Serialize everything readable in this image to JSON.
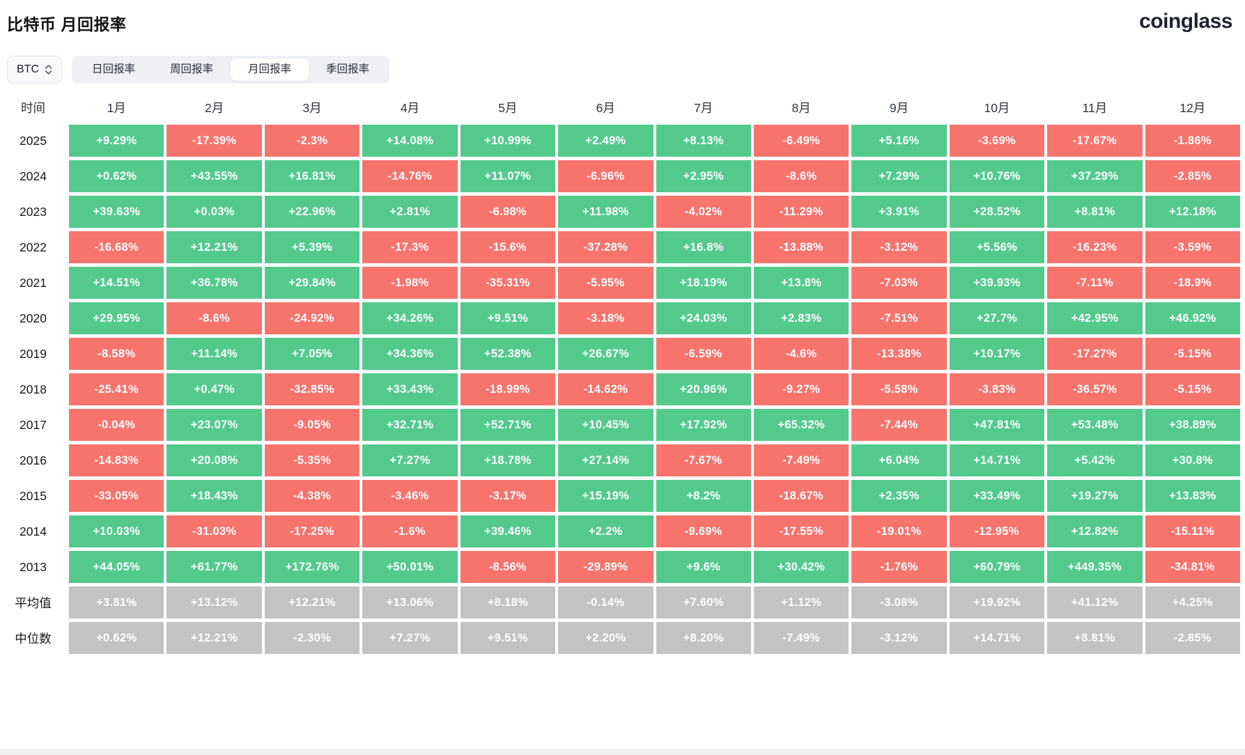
{
  "page": {
    "title": "比特币 月回报率",
    "brand": "coinglass"
  },
  "controls": {
    "coin_selector": {
      "value": "BTC",
      "icon": "up-down-chevrons"
    },
    "tabs": [
      {
        "label": "日回报率",
        "active": false
      },
      {
        "label": "周回报率",
        "active": false
      },
      {
        "label": "月回报率",
        "active": true
      },
      {
        "label": "季回报率",
        "active": false
      }
    ]
  },
  "colors": {
    "positive": "#53ca8c",
    "negative": "#f7746c",
    "summary": "#c3c3c3",
    "cell_text": "#ffffff"
  },
  "table": {
    "time_header": "时间",
    "columns": [
      "1月",
      "2月",
      "3月",
      "4月",
      "5月",
      "6月",
      "7月",
      "8月",
      "9月",
      "10月",
      "11月",
      "12月"
    ],
    "rows": [
      {
        "label": "2025",
        "type": "year",
        "values": [
          "+9.29%",
          "-17.39%",
          "-2.3%",
          "+14.08%",
          "+10.99%",
          "+2.49%",
          "+8.13%",
          "-6.49%",
          "+5.16%",
          "-3.69%",
          "-17.67%",
          "-1.86%"
        ]
      },
      {
        "label": "2024",
        "type": "year",
        "values": [
          "+0.62%",
          "+43.55%",
          "+16.81%",
          "-14.76%",
          "+11.07%",
          "-6.96%",
          "+2.95%",
          "-8.6%",
          "+7.29%",
          "+10.76%",
          "+37.29%",
          "-2.85%"
        ]
      },
      {
        "label": "2023",
        "type": "year",
        "values": [
          "+39.63%",
          "+0.03%",
          "+22.96%",
          "+2.81%",
          "-6.98%",
          "+11.98%",
          "-4.02%",
          "-11.29%",
          "+3.91%",
          "+28.52%",
          "+8.81%",
          "+12.18%"
        ]
      },
      {
        "label": "2022",
        "type": "year",
        "values": [
          "-16.68%",
          "+12.21%",
          "+5.39%",
          "-17.3%",
          "-15.6%",
          "-37.28%",
          "+16.8%",
          "-13.88%",
          "-3.12%",
          "+5.56%",
          "-16.23%",
          "-3.59%"
        ]
      },
      {
        "label": "2021",
        "type": "year",
        "values": [
          "+14.51%",
          "+36.78%",
          "+29.84%",
          "-1.98%",
          "-35.31%",
          "-5.95%",
          "+18.19%",
          "+13.8%",
          "-7.03%",
          "+39.93%",
          "-7.11%",
          "-18.9%"
        ]
      },
      {
        "label": "2020",
        "type": "year",
        "values": [
          "+29.95%",
          "-8.6%",
          "-24.92%",
          "+34.26%",
          "+9.51%",
          "-3.18%",
          "+24.03%",
          "+2.83%",
          "-7.51%",
          "+27.7%",
          "+42.95%",
          "+46.92%"
        ]
      },
      {
        "label": "2019",
        "type": "year",
        "values": [
          "-8.58%",
          "+11.14%",
          "+7.05%",
          "+34.36%",
          "+52.38%",
          "+26.67%",
          "-6.59%",
          "-4.6%",
          "-13.38%",
          "+10.17%",
          "-17.27%",
          "-5.15%"
        ]
      },
      {
        "label": "2018",
        "type": "year",
        "values": [
          "-25.41%",
          "+0.47%",
          "-32.85%",
          "+33.43%",
          "-18.99%",
          "-14.62%",
          "+20.96%",
          "-9.27%",
          "-5.58%",
          "-3.83%",
          "-36.57%",
          "-5.15%"
        ]
      },
      {
        "label": "2017",
        "type": "year",
        "values": [
          "-0.04%",
          "+23.07%",
          "-9.05%",
          "+32.71%",
          "+52.71%",
          "+10.45%",
          "+17.92%",
          "+65.32%",
          "-7.44%",
          "+47.81%",
          "+53.48%",
          "+38.89%"
        ]
      },
      {
        "label": "2016",
        "type": "year",
        "values": [
          "-14.83%",
          "+20.08%",
          "-5.35%",
          "+7.27%",
          "+18.78%",
          "+27.14%",
          "-7.67%",
          "-7.49%",
          "+6.04%",
          "+14.71%",
          "+5.42%",
          "+30.8%"
        ]
      },
      {
        "label": "2015",
        "type": "year",
        "values": [
          "-33.05%",
          "+18.43%",
          "-4.38%",
          "-3.46%",
          "-3.17%",
          "+15.19%",
          "+8.2%",
          "-18.67%",
          "+2.35%",
          "+33.49%",
          "+19.27%",
          "+13.83%"
        ]
      },
      {
        "label": "2014",
        "type": "year",
        "values": [
          "+10.03%",
          "-31.03%",
          "-17.25%",
          "-1.6%",
          "+39.46%",
          "+2.2%",
          "-9.69%",
          "-17.55%",
          "-19.01%",
          "-12.95%",
          "+12.82%",
          "-15.11%"
        ]
      },
      {
        "label": "2013",
        "type": "year",
        "values": [
          "+44.05%",
          "+61.77%",
          "+172.76%",
          "+50.01%",
          "-8.56%",
          "-29.89%",
          "+9.6%",
          "+30.42%",
          "-1.76%",
          "+60.79%",
          "+449.35%",
          "-34.81%"
        ]
      },
      {
        "label": "平均值",
        "type": "summary",
        "values": [
          "+3.81%",
          "+13.12%",
          "+12.21%",
          "+13.06%",
          "+8.18%",
          "-0.14%",
          "+7.60%",
          "+1.12%",
          "-3.08%",
          "+19.92%",
          "+41.12%",
          "+4.25%"
        ]
      },
      {
        "label": "中位数",
        "type": "summary",
        "values": [
          "+0.62%",
          "+12.21%",
          "-2.30%",
          "+7.27%",
          "+9.51%",
          "+2.20%",
          "+8.20%",
          "-7.49%",
          "-3.12%",
          "+14.71%",
          "+8.81%",
          "-2.85%"
        ]
      }
    ]
  }
}
